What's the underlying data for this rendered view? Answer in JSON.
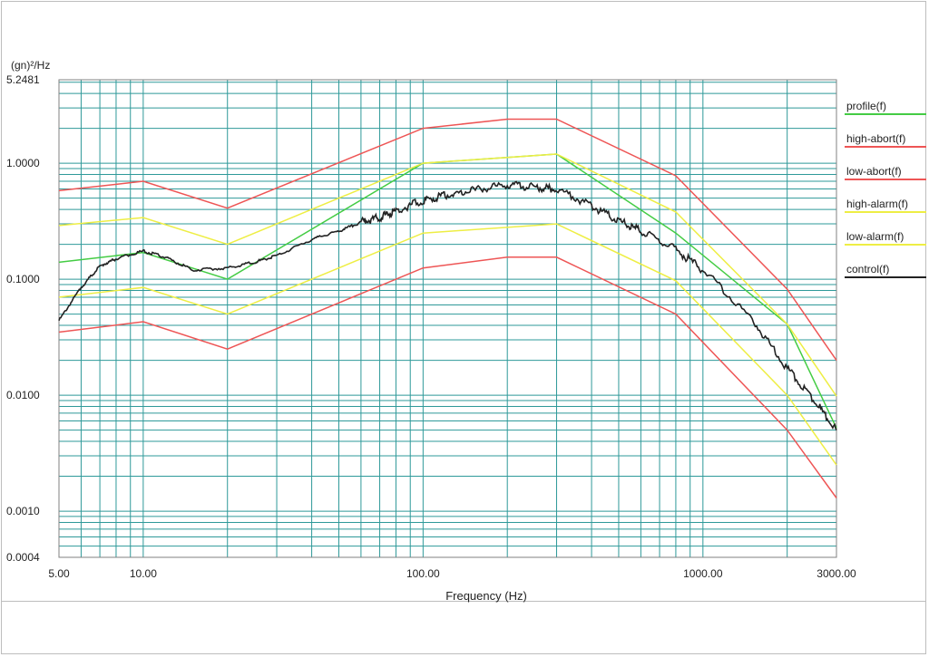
{
  "chart_data": {
    "type": "line",
    "title": "",
    "xlabel": "Frequency (Hz)",
    "ylabel": "(gn)²/Hz",
    "x_scale": "log",
    "y_scale": "log",
    "xlim": [
      5,
      3000
    ],
    "ylim": [
      0.0004,
      5.2481
    ],
    "grid": true,
    "legend_position": "right",
    "x_ticks": [
      {
        "value": 5,
        "label": "5.00"
      },
      {
        "value": 10,
        "label": "10.00"
      },
      {
        "value": 100,
        "label": "100.00"
      },
      {
        "value": 1000,
        "label": "1000.00"
      },
      {
        "value": 3000,
        "label": "3000.00"
      }
    ],
    "y_ticks": [
      {
        "value": 5.2481,
        "label": "5.2481"
      },
      {
        "value": 1,
        "label": "1.0000"
      },
      {
        "value": 0.1,
        "label": "0.1000"
      },
      {
        "value": 0.01,
        "label": "0.0100"
      },
      {
        "value": 0.001,
        "label": "0.0010"
      },
      {
        "value": 0.0004,
        "label": "0.0004"
      }
    ],
    "series": [
      {
        "name": "profile(f)",
        "color": "#44cc44",
        "x": [
          5,
          10,
          20,
          100,
          300,
          800,
          2000,
          3000
        ],
        "y": [
          0.14,
          0.17,
          0.1,
          1.0,
          1.2,
          0.25,
          0.041,
          0.0052
        ]
      },
      {
        "name": "high-abort(f)",
        "color": "#ee5555",
        "x": [
          5,
          10,
          20,
          100,
          200,
          300,
          800,
          2000,
          3000
        ],
        "y": [
          0.58,
          0.7,
          0.41,
          2.0,
          2.4,
          2.4,
          0.78,
          0.082,
          0.02
        ]
      },
      {
        "name": "low-abort(f)",
        "color": "#ee5555",
        "x": [
          5,
          10,
          20,
          100,
          200,
          300,
          800,
          2000,
          3000
        ],
        "y": [
          0.035,
          0.043,
          0.025,
          0.125,
          0.155,
          0.155,
          0.05,
          0.005,
          0.0013
        ]
      },
      {
        "name": "high-alarm(f)",
        "color": "#eeee44",
        "x": [
          5,
          10,
          20,
          100,
          300,
          800,
          2000,
          3000
        ],
        "y": [
          0.29,
          0.34,
          0.2,
          1.0,
          1.2,
          0.38,
          0.041,
          0.0098
        ]
      },
      {
        "name": "low-alarm(f)",
        "color": "#eeee44",
        "x": [
          5,
          10,
          20,
          100,
          300,
          800,
          2000,
          3000
        ],
        "y": [
          0.07,
          0.085,
          0.05,
          0.25,
          0.3,
          0.097,
          0.01,
          0.0025
        ]
      },
      {
        "name": "control(f)",
        "color": "#222222",
        "x": [
          5,
          6,
          7,
          8,
          10,
          12,
          15,
          20,
          25,
          30,
          40,
          50,
          60,
          70,
          80,
          100,
          120,
          150,
          200,
          250,
          300,
          400,
          500,
          600,
          800,
          1000,
          1500,
          2000,
          2500,
          3000
        ],
        "y": [
          0.044,
          0.085,
          0.13,
          0.15,
          0.175,
          0.155,
          0.12,
          0.125,
          0.14,
          0.16,
          0.22,
          0.26,
          0.31,
          0.34,
          0.39,
          0.48,
          0.53,
          0.58,
          0.66,
          0.62,
          0.6,
          0.43,
          0.32,
          0.26,
          0.18,
          0.12,
          0.045,
          0.017,
          0.009,
          0.005
        ]
      }
    ]
  }
}
